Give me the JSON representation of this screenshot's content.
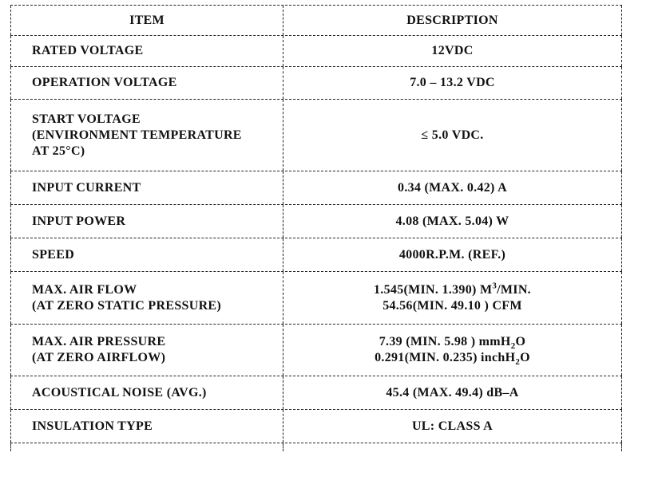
{
  "table": {
    "header": {
      "item": "ITEM",
      "description": "DESCRIPTION"
    },
    "rows": [
      {
        "item": "RATED VOLTAGE",
        "description": "12VDC"
      },
      {
        "item": "OPERATION VOLTAGE",
        "description": "7.0  –  13.2  VDC"
      },
      {
        "item": "START VOLTAGE\n(ENVIRONMENT TEMPERATURE\nAT 25°C)",
        "description": "≤  5.0  VDC."
      },
      {
        "item": "INPUT  CURRENT",
        "description": "0.34  (MAX.  0.42)  A"
      },
      {
        "item": "INPUT  POWER",
        "description": "4.08  (MAX.  5.04)  W"
      },
      {
        "item": "SPEED",
        "description": "4000R.P.M.  (REF.)"
      },
      {
        "item": "MAX.  AIR  FLOW\n(AT  ZERO  STATIC  PRESSURE)",
        "description_line1": {
          "text": "1.545(MIN.  1.390)  M",
          "sup": "3",
          "tail": "/MIN."
        },
        "description_line2": "54.56(MIN.  49.10  )  CFM"
      },
      {
        "item": "MAX.  AIR  PRESSURE\n(AT  ZERO  AIRFLOW)",
        "description_line1": {
          "text": "7.39  (MIN.  5.98  )  mmH",
          "sub": "2",
          "tail": "O"
        },
        "description_line2": {
          "text": "0.291(MIN.  0.235)  inchH",
          "sub": "2",
          "tail": "O"
        }
      },
      {
        "item": "ACOUSTICAL  NOISE  (AVG.)",
        "description": "45.4  (MAX.  49.4)  dB–A"
      },
      {
        "item": "INSULATION  TYPE",
        "description": "UL:  CLASS  A"
      }
    ]
  }
}
